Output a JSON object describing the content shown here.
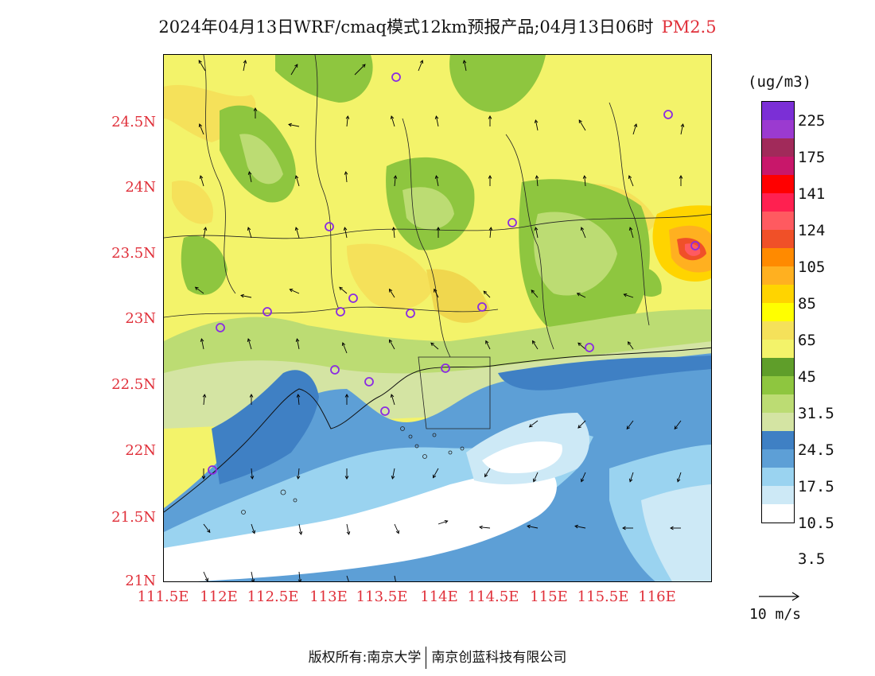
{
  "title": {
    "text": "2024年04月13日WRF/cmaq模式12km预报产品;04月13日06时",
    "pollutant": "PM2.5"
  },
  "map": {
    "lat_ticks": [
      "24.5N",
      "24N",
      "23.5N",
      "23N",
      "22.5N",
      "22N",
      "21.5N",
      "21N"
    ],
    "lon_ticks": [
      "111.5E",
      "112E",
      "112.5E",
      "113E",
      "113.5E",
      "114E",
      "114.5E",
      "115E",
      "115.5E",
      "116E"
    ],
    "lat_range": [
      21.0,
      25.0
    ],
    "lon_range": [
      111.5,
      116.7
    ],
    "tick_color": "#e0303a",
    "station_marker_color": "#8a2be2"
  },
  "legend": {
    "unit": "(ug/m3)",
    "labels": [
      "225",
      "175",
      "141",
      "124",
      "105",
      "85",
      "65",
      "45",
      "31.5",
      "24.5",
      "17.5",
      "10.5",
      "3.5"
    ],
    "colors": [
      "#7b2fd6",
      "#9b3ad0",
      "#a12a5a",
      "#c8176a",
      "#ff0000",
      "#ff2050",
      "#ff5a60",
      "#f05028",
      "#ff8a00",
      "#ffb020",
      "#ffd400",
      "#ffff00",
      "#f5e15a",
      "#f3f36a",
      "#5f9e2a",
      "#8ec63f",
      "#bcdc73",
      "#d4e4a3",
      "#3f80c4",
      "#5d9fd6",
      "#9ad3f0",
      "#cde9f6",
      "#ffffff"
    ]
  },
  "wind": {
    "label": "10 m/s"
  },
  "footer": {
    "left": "版权所有:南京大学",
    "right": "南京创蓝科技有限公司"
  }
}
